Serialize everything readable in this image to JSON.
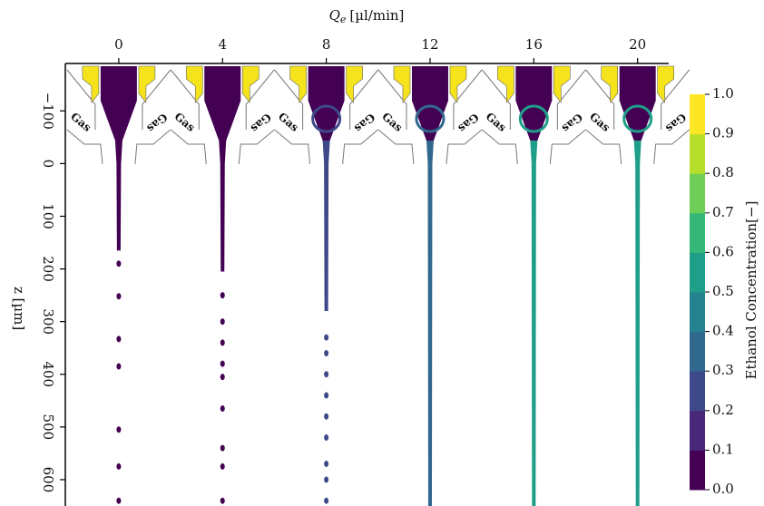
{
  "chart_data": {
    "type": "jet-field",
    "x_label": "Qe [µl/min]",
    "x_label_symbol": "Q",
    "x_label_subscript": "e",
    "x_label_unit": "[µl/min]",
    "y_label": "z [µm]",
    "gas_label": "Gas",
    "xticks": [
      0,
      4,
      8,
      12,
      16,
      20
    ],
    "xlim": [
      -2.06,
      21.2
    ],
    "yticks": [
      {
        "value": -100,
        "label": "−100"
      },
      0,
      100,
      200,
      300,
      400,
      500,
      600
    ],
    "ylim": [
      -190,
      650
    ],
    "jet_concentration": [
      0.0,
      0.05,
      0.25,
      0.35,
      0.5,
      0.55
    ],
    "breakup_z": [
      165,
      205,
      280,
      null,
      null,
      null
    ],
    "droplets_z": [
      [
        190,
        252,
        333,
        385,
        505,
        575,
        640
      ],
      [
        250,
        300,
        340,
        380,
        405,
        465,
        540,
        575,
        640
      ],
      [
        330,
        360,
        400,
        440,
        480,
        520,
        570,
        600,
        640
      ],
      [],
      [],
      []
    ],
    "colorbar_label": "Ethanol Concentration[−]",
    "colorbar_ticks": [
      {
        "value": 0,
        "label": "0.0"
      },
      0.1,
      0.2,
      0.3,
      0.4,
      0.5,
      0.6,
      0.7,
      0.8,
      0.9,
      {
        "value": 1,
        "label": "1.0"
      }
    ],
    "colormap": [
      "#440154",
      "#482878",
      "#3e4989",
      "#31688e",
      "#26828e",
      "#1f9e89",
      "#35b779",
      "#6ece58",
      "#b5de2b",
      "#fde725"
    ]
  }
}
